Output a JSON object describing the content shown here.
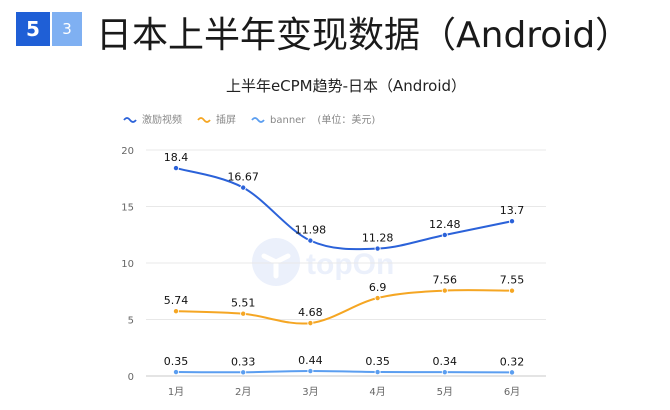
{
  "badge": {
    "number": "5",
    "sub": "3"
  },
  "slide_title": "日本上半年变现数据（Android）",
  "watermark": "topOn",
  "colors": {
    "accent_blue": "#1f5fd6",
    "badge_light": "#7fb0f2"
  },
  "chart_data": {
    "type": "line",
    "title": "上半年eCPM趋势-日本（Android）",
    "unit_note": "(单位：美元)",
    "categories": [
      "1月",
      "2月",
      "3月",
      "4月",
      "5月",
      "6月"
    ],
    "ylim": [
      0,
      20
    ],
    "yticks": [
      0,
      5,
      10,
      15,
      20
    ],
    "grid": true,
    "legend_position": "top-left",
    "series": [
      {
        "name": "激励视频",
        "color": "#2b62d9",
        "values": [
          18.4,
          16.67,
          11.98,
          11.28,
          12.48,
          13.7
        ]
      },
      {
        "name": "插屏",
        "color": "#f5a623",
        "values": [
          5.74,
          5.51,
          4.68,
          6.9,
          7.56,
          7.55
        ]
      },
      {
        "name": "banner",
        "color": "#5b9ef0",
        "values": [
          0.35,
          0.33,
          0.44,
          0.35,
          0.34,
          0.32
        ]
      }
    ]
  }
}
